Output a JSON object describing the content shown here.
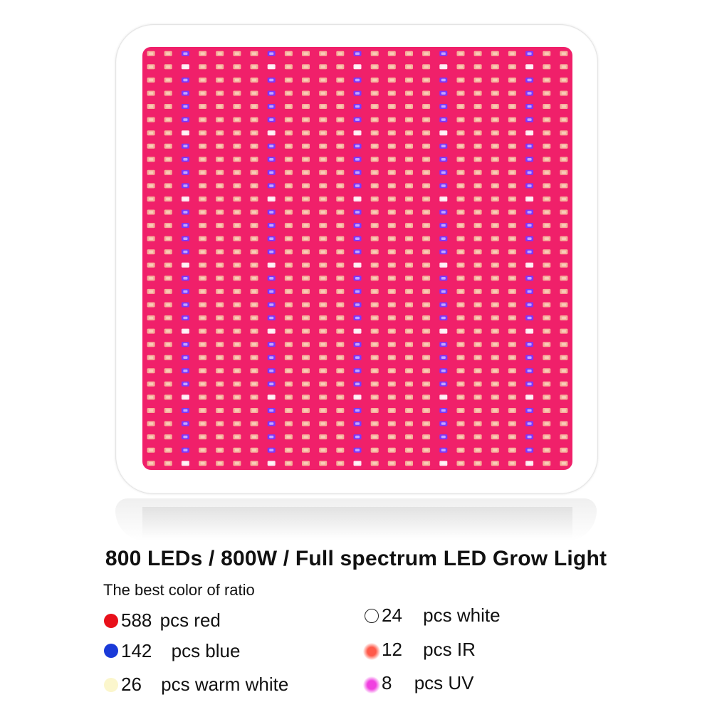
{
  "headline": "800 LEDs / 800W / Full spectrum LED Grow Light",
  "subline": "The best color of ratio",
  "specs": [
    {
      "count": "588",
      "label": "pcs red",
      "dot_color": "#e8101a",
      "dot_style": "solid"
    },
    {
      "count": "142",
      "label": "pcs blue",
      "dot_color": "#1a3ad8",
      "dot_style": "solid"
    },
    {
      "count": "26",
      "label": "pcs warm white",
      "dot_color": "#fbf6cc",
      "dot_style": "solid"
    },
    {
      "count": "24",
      "label": "pcs white",
      "dot_color": "#ffffff",
      "dot_style": "outline"
    },
    {
      "count": "12",
      "label": "pcs IR",
      "dot_color": "#ff5a4a",
      "dot_style": "glow"
    },
    {
      "count": "8",
      "label": "pcs UV",
      "dot_color": "#f040e0",
      "dot_style": "glow"
    }
  ],
  "colors": {
    "board": "#f0206a",
    "led_warm": "#f6b09a",
    "led_blue": "#7a38ff",
    "led_white": "#fde8f0",
    "led_dark": "#b51243"
  },
  "icons": [
    "led-panel-image",
    "color-dot-icon"
  ]
}
